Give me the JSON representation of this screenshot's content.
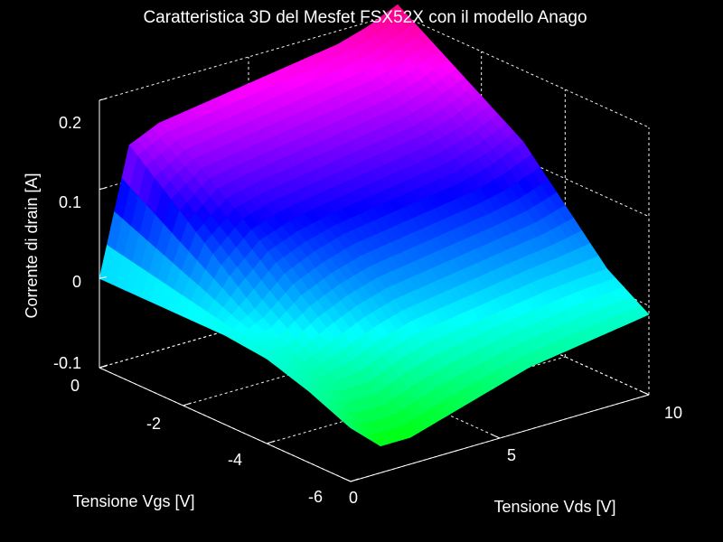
{
  "chart_data": {
    "type": "surface",
    "title": "Caratteristica 3D del Mesfet FSX52X con il modello Anago",
    "xlabel": "Tensione Vgs [V]",
    "ylabel": "Tensione Vds [V]",
    "zlabel": "Corrente di drain [A]",
    "xlim": [
      -6,
      0
    ],
    "ylim": [
      0,
      10
    ],
    "zlim": [
      -0.1,
      0.2
    ],
    "x_ticks": [
      "0",
      "-2",
      "-4",
      "-6"
    ],
    "y_ticks": [
      "0",
      "5",
      "10"
    ],
    "z_ticks": [
      "0.2",
      "0.1",
      "0",
      "-0.1"
    ],
    "grid": true,
    "colormap": "hsv",
    "background_color": "#000000",
    "axes_color": "#ffffff",
    "vgs": [
      0,
      -1,
      -2,
      -3,
      -4,
      -5,
      -6
    ],
    "vds": [
      0,
      1,
      2,
      3,
      4,
      5,
      6,
      7,
      8,
      9,
      10
    ],
    "current": [
      [
        0.0,
        0.14,
        0.155,
        0.16,
        0.165,
        0.17,
        0.175,
        0.18,
        0.185,
        0.195,
        0.21
      ],
      [
        0.0,
        0.1,
        0.125,
        0.13,
        0.135,
        0.14,
        0.145,
        0.15,
        0.155,
        0.165,
        0.18
      ],
      [
        0.0,
        0.06,
        0.09,
        0.1,
        0.105,
        0.11,
        0.115,
        0.12,
        0.125,
        0.135,
        0.15
      ],
      [
        0.0,
        0.02,
        0.05,
        0.065,
        0.075,
        0.08,
        0.085,
        0.09,
        0.095,
        0.105,
        0.12
      ],
      [
        -0.005,
        -0.01,
        0.01,
        0.025,
        0.035,
        0.04,
        0.045,
        0.05,
        0.055,
        0.06,
        0.07
      ],
      [
        -0.02,
        -0.03,
        -0.03,
        -0.015,
        -0.005,
        0.0,
        0.005,
        0.01,
        0.015,
        0.018,
        0.02
      ],
      [
        -0.04,
        -0.07,
        -0.07,
        -0.06,
        -0.05,
        -0.04,
        -0.03,
        -0.025,
        -0.02,
        -0.015,
        -0.01
      ]
    ]
  }
}
